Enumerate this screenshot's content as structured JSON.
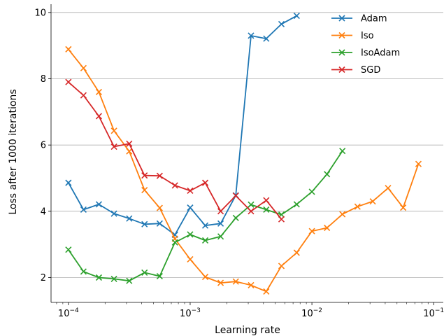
{
  "chart_data": {
    "type": "line",
    "xlabel": "Learning rate",
    "ylabel": "Loss after 1000 iterations",
    "xscale": "log",
    "xlim": [
      7.2e-05,
      0.12
    ],
    "ylim": [
      1.25,
      10.25
    ],
    "yticks": [
      2,
      4,
      6,
      8,
      10
    ],
    "ytick_labels": [
      "2",
      "4",
      "6",
      "8",
      "10"
    ],
    "xticks": [
      0.0001,
      0.001,
      0.01,
      0.1
    ],
    "xtick_labels": [
      {
        "base": "10",
        "exp": "−4"
      },
      {
        "base": "10",
        "exp": "−3"
      },
      {
        "base": "10",
        "exp": "−2"
      },
      {
        "base": "10",
        "exp": "−1"
      }
    ],
    "grid": "horizontal",
    "legend_position": "top-right",
    "marker": "x",
    "series": [
      {
        "name": "Adam",
        "color": "#1f77b4",
        "x": [
          0.0001,
          0.000133,
          0.000178,
          0.000237,
          0.000316,
          0.000422,
          0.000562,
          0.00075,
          0.001,
          0.00133,
          0.00178,
          0.00237,
          0.00316,
          0.00422,
          0.00562,
          0.0075
        ],
        "y": [
          4.86,
          4.05,
          4.21,
          3.93,
          3.78,
          3.61,
          3.63,
          3.29,
          4.11,
          3.57,
          3.63,
          4.48,
          9.3,
          9.21,
          9.65,
          9.9
        ]
      },
      {
        "name": "Iso",
        "color": "#ff7f0e",
        "x": [
          0.0001,
          0.000133,
          0.000178,
          0.000237,
          0.000316,
          0.000422,
          0.000562,
          0.00075,
          0.001,
          0.00133,
          0.00178,
          0.00237,
          0.00316,
          0.00422,
          0.00562,
          0.0075,
          0.01,
          0.0133,
          0.0178,
          0.0237,
          0.0316,
          0.0422,
          0.0562,
          0.075
        ],
        "y": [
          8.89,
          8.32,
          7.6,
          6.43,
          5.81,
          4.64,
          4.1,
          3.17,
          2.55,
          2.02,
          1.84,
          1.88,
          1.77,
          1.58,
          2.35,
          2.75,
          3.4,
          3.5,
          3.91,
          4.14,
          4.3,
          4.7,
          4.11,
          5.43
        ]
      },
      {
        "name": "IsoAdam",
        "color": "#2ca02c",
        "x": [
          0.0001,
          0.000133,
          0.000178,
          0.000237,
          0.000316,
          0.000422,
          0.000562,
          0.00075,
          0.001,
          0.00133,
          0.00178,
          0.00237,
          0.00316,
          0.00422,
          0.00562,
          0.0075,
          0.01,
          0.0133,
          0.0178
        ],
        "y": [
          2.84,
          2.18,
          2.0,
          1.96,
          1.9,
          2.15,
          2.04,
          3.06,
          3.3,
          3.12,
          3.24,
          3.8,
          4.2,
          4.05,
          3.9,
          4.21,
          4.59,
          5.12,
          5.82
        ]
      },
      {
        "name": "SGD",
        "color": "#d62728",
        "x": [
          0.0001,
          0.000133,
          0.000178,
          0.000237,
          0.000316,
          0.000422,
          0.000562,
          0.00075,
          0.001,
          0.00133,
          0.00178,
          0.00237,
          0.00316,
          0.00422,
          0.00562
        ],
        "y": [
          7.9,
          7.5,
          6.87,
          5.95,
          6.04,
          5.08,
          5.07,
          4.78,
          4.62,
          4.86,
          4.0,
          4.47,
          4.0,
          4.33,
          3.76
        ]
      }
    ]
  }
}
